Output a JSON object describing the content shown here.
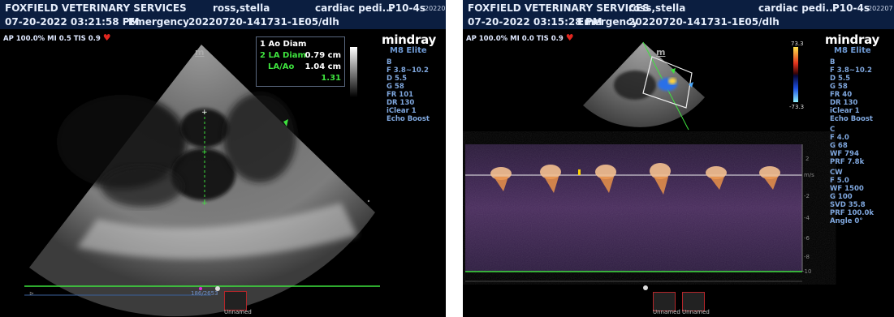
{
  "left": {
    "header": {
      "clinic": "FOXFIELD VETERINARY SERVICES",
      "patient": "ross,stella",
      "study": "cardiac pedi...",
      "probe": "P10-4s",
      "date_frag": "20220",
      "datetime": "07-20-2022 03:21:58 PM",
      "dept": "Emergency",
      "exam_id": "20220720-141731-1E05/dlh"
    },
    "status": "AP 100.0%  MI 0.5  TIS 0.9",
    "brand": "mindray",
    "model": "M8 Elite",
    "params": [
      "B",
      "F 3.8~10.2",
      "D 5.5",
      "G 58",
      "FR 101",
      "DR 130",
      "iClear 1",
      "Echo Boost"
    ],
    "measurements": [
      {
        "idx": "1",
        "label": "Ao Diam",
        "value": "0.79 cm"
      },
      {
        "idx": "2",
        "label": "LA Diam",
        "value": "1.04 cm"
      },
      {
        "idx": "",
        "label": "LA/Ao",
        "value": "1.31"
      }
    ],
    "m_label": "m",
    "frame_counter": "186/2653",
    "thumb_label": "Unnamed"
  },
  "right": {
    "header": {
      "clinic": "FOXFIELD VETERINARY SERVICES",
      "patient": "ross,stella",
      "study": "cardiac pedi...",
      "probe": "P10-4s",
      "date_frag": "202207",
      "datetime": "07-20-2022 03:15:28 PM",
      "dept": "Emergency",
      "exam_id": "20220720-141731-1E05/dlh"
    },
    "status": "AP 100.0%  MI 0.0  TIS 0.9",
    "brand": "mindray",
    "model": "M8 Elite",
    "color_bar_top": "73.3",
    "color_bar_bottom": "-73.3",
    "params": [
      "B",
      "F 3.8~10.2",
      "D 5.5",
      "G 58",
      "FR 40",
      "DR 130",
      "iClear 1",
      "Echo Boost",
      "C",
      "F 4.0",
      "G 68",
      "WF 794",
      "PRF 7.8k",
      "CW",
      "F 5.0",
      "WF 1500",
      "G 100",
      "SVD 35.8",
      "PRF 100.0k",
      "Angle 0°"
    ],
    "scale_ticks": [
      "2",
      "m/s",
      "-2",
      "-4",
      "-6",
      "-8",
      "-10"
    ],
    "m_label": "m",
    "thumb_labels": [
      "Unnamed",
      "Unnamed"
    ]
  },
  "colors": {
    "header_bg": "#0b1e40",
    "green": "#3ee23e",
    "heart": "#e0261f"
  }
}
